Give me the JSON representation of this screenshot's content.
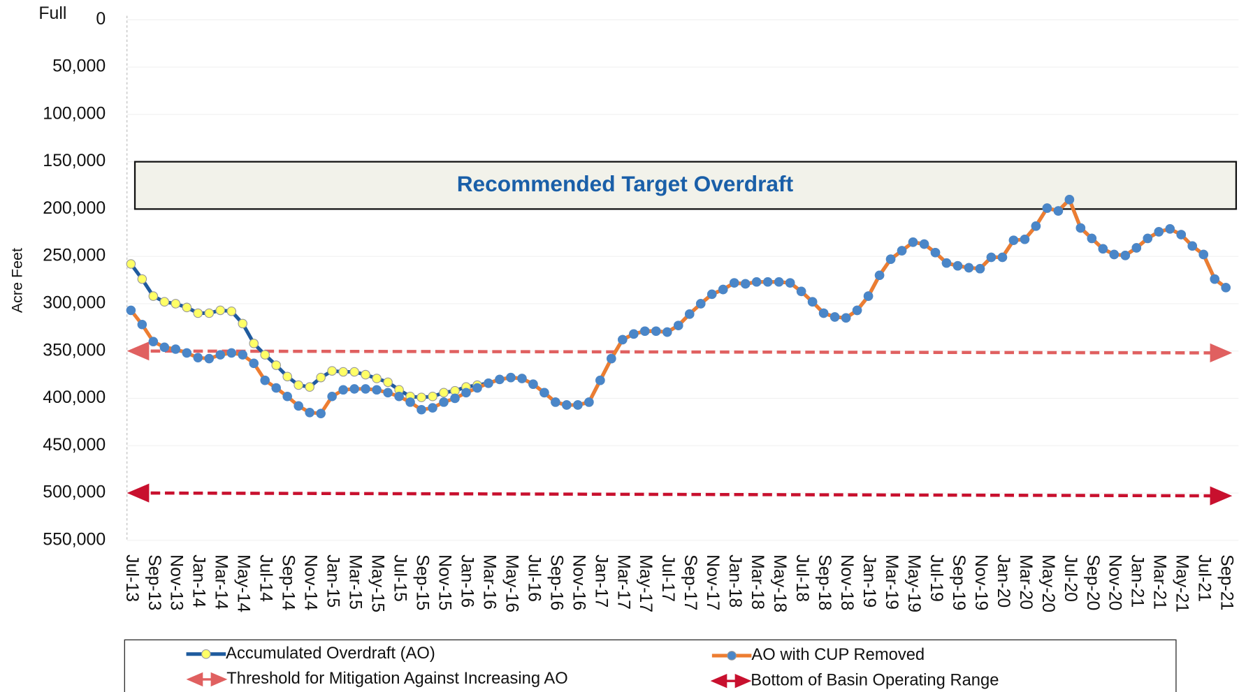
{
  "chart_data": {
    "type": "line",
    "y_label": "Acre Feet",
    "y_top_annotation": "Full",
    "y_inverted": true,
    "ylim": [
      0,
      550000
    ],
    "yticks": [
      0,
      {
        "value": 50000,
        "label": "50,000"
      },
      {
        "value": 100000,
        "label": "100,000"
      },
      {
        "value": 150000,
        "label": "150,000"
      },
      {
        "value": 200000,
        "label": "200,000"
      },
      {
        "value": 250000,
        "label": "250,000"
      },
      {
        "value": 300000,
        "label": "300,000"
      },
      {
        "value": 350000,
        "label": "350,000"
      },
      {
        "value": 400000,
        "label": "400,000"
      },
      {
        "value": 450000,
        "label": "450,000"
      },
      {
        "value": 500000,
        "label": "500,000"
      },
      {
        "value": 550000,
        "label": "550,000"
      }
    ],
    "grid": true,
    "legend": "bottom",
    "categories": [
      "Jul-13",
      null,
      "Sep-13",
      null,
      "Nov-13",
      null,
      "Jan-14",
      null,
      "Mar-14",
      null,
      "May-14",
      null,
      "Jul-14",
      null,
      "Sep-14",
      null,
      "Nov-14",
      null,
      "Jan-15",
      null,
      "Mar-15",
      null,
      "May-15",
      null,
      "Jul-15",
      null,
      "Sep-15",
      null,
      "Nov-15",
      null,
      "Jan-16",
      null,
      "Mar-16",
      null,
      "May-16",
      null,
      "Jul-16",
      null,
      "Sep-16",
      null,
      "Nov-16",
      null,
      "Jan-17",
      null,
      "Mar-17",
      null,
      "May-17",
      null,
      "Jul-17",
      null,
      "Sep-17",
      null,
      "Nov-17",
      null,
      "Jan-18",
      null,
      "Mar-18",
      null,
      "May-18",
      null,
      "Jul-18",
      null,
      "Sep-18",
      null,
      "Nov-18",
      null,
      "Jan-19",
      null,
      "Mar-19",
      null,
      "May-19",
      null,
      "Jul-19",
      null,
      "Sep-19",
      null,
      "Nov-19",
      null,
      "Jan-20",
      null,
      "Mar-20",
      null,
      "May-20",
      null,
      "Jul-20",
      null,
      "Sep-20",
      null,
      "Nov-20",
      null,
      "Jan-21",
      null,
      "Mar-21",
      null,
      "May-21",
      null,
      "Jul-21",
      null,
      "Sep-21"
    ],
    "series": [
      {
        "name": "Accumulated Overdraft (AO)",
        "color": "#1f5b9e",
        "marker_color": "#ffff66",
        "values": [
          258000,
          274000,
          292000,
          298000,
          300000,
          304000,
          310000,
          310000,
          307000,
          308000,
          321000,
          342000,
          354000,
          365000,
          377000,
          386000,
          388000,
          378000,
          371000,
          372000,
          372000,
          375000,
          379000,
          383000,
          391000,
          398000,
          399000,
          398000,
          394000,
          392000,
          388000,
          386000,
          384000,
          380000,
          378000,
          379000,
          385000,
          394000,
          404000,
          407000,
          407000,
          404000,
          381000,
          358000,
          338000,
          332000,
          329000,
          329000,
          330000,
          323000,
          311000,
          300000,
          290000,
          285000,
          278000,
          279000,
          277000,
          277000,
          277000,
          278000,
          287000,
          298000,
          310000,
          314000,
          315000,
          307000,
          292000,
          270000,
          253000,
          244000,
          235000,
          237000,
          246000,
          257000,
          260000,
          262000,
          263000,
          251000,
          251000,
          233000,
          232000,
          218000,
          199000,
          202000,
          190000,
          220000,
          231000,
          242000,
          248000,
          249000,
          241000,
          231000,
          224000,
          221000,
          227000,
          239000,
          248000,
          274000,
          283000
        ]
      },
      {
        "name": "AO with CUP Removed",
        "color": "#ed7d31",
        "marker_color": "#4a86c8",
        "values": [
          307000,
          322000,
          340000,
          346000,
          348000,
          352000,
          357000,
          358000,
          354000,
          352000,
          354000,
          363000,
          381000,
          389000,
          398000,
          408000,
          415000,
          416000,
          398000,
          391000,
          390000,
          390000,
          391000,
          394000,
          398000,
          404000,
          412000,
          410000,
          404000,
          400000,
          394000,
          389000,
          384000,
          380000,
          378000,
          379000,
          385000,
          394000,
          404000,
          407000,
          407000,
          404000,
          381000,
          358000,
          338000,
          332000,
          329000,
          329000,
          330000,
          323000,
          311000,
          300000,
          290000,
          285000,
          278000,
          279000,
          277000,
          277000,
          277000,
          278000,
          287000,
          298000,
          310000,
          314000,
          315000,
          307000,
          292000,
          270000,
          253000,
          244000,
          235000,
          237000,
          246000,
          257000,
          260000,
          262000,
          263000,
          251000,
          251000,
          233000,
          232000,
          218000,
          199000,
          202000,
          190000,
          220000,
          231000,
          242000,
          248000,
          249000,
          241000,
          231000,
          224000,
          221000,
          227000,
          239000,
          248000,
          274000,
          283000
        ]
      }
    ],
    "reference_lines": [
      {
        "name": "Threshold for Mitigation Against Increasing AO",
        "color": "#e06060",
        "values": [
          350000,
          352000
        ]
      },
      {
        "name": "Bottom of Basin Operating Range",
        "color": "#c8102e",
        "values": [
          500000,
          503000
        ]
      }
    ],
    "target_band": {
      "label": "Recommended Target Overdraft",
      "range": [
        150000,
        200000
      ],
      "color": "#f2f2ea",
      "label_color": "#1a5fa8"
    }
  }
}
